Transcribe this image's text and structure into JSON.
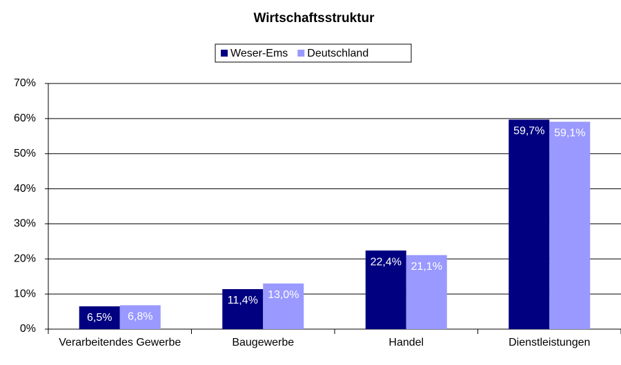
{
  "chart_data": {
    "type": "bar",
    "title": "Wirtschaftsstruktur",
    "categories": [
      "Verarbeitendes Gewerbe",
      "Baugewerbe",
      "Handel",
      "Dienstleistungen"
    ],
    "series": [
      {
        "name": "Weser-Ems",
        "color": "#000080",
        "values": [
          6.5,
          11.4,
          22.4,
          59.7
        ],
        "value_labels": [
          "6,5%",
          "11,4%",
          "22,4%",
          "59,7%"
        ]
      },
      {
        "name": "Deutschland",
        "color": "#9999ff",
        "values": [
          6.8,
          13.0,
          21.1,
          59.1
        ],
        "value_labels": [
          "6,8%",
          "13,0%",
          "21,1%",
          "59,1%"
        ]
      }
    ],
    "ylim": [
      0,
      70
    ],
    "yticks": [
      {
        "value": 0,
        "label": "0%"
      },
      {
        "value": 10,
        "label": "10%"
      },
      {
        "value": 20,
        "label": "20%"
      },
      {
        "value": 30,
        "label": "30%"
      },
      {
        "value": 40,
        "label": "40%"
      },
      {
        "value": 50,
        "label": "50%"
      },
      {
        "value": 60,
        "label": "60%"
      },
      {
        "value": 70,
        "label": "70%"
      }
    ],
    "grid": true,
    "legend": "top"
  }
}
